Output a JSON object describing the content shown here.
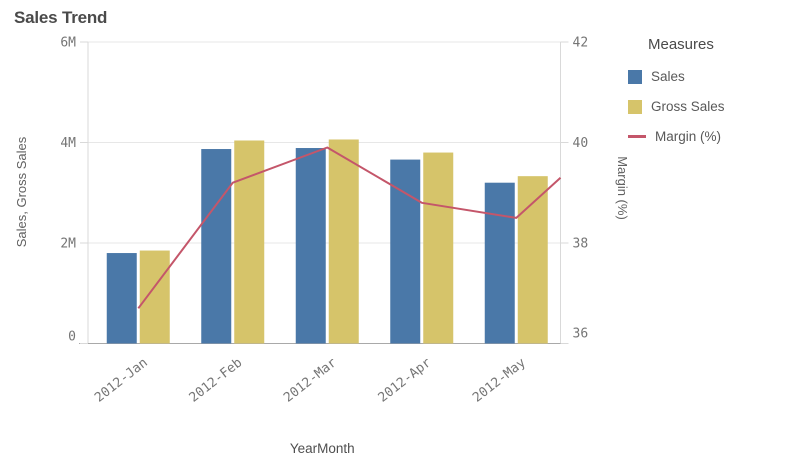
{
  "title": "Sales Trend",
  "legend": {
    "title": "Measures",
    "items": [
      {
        "label": "Sales",
        "swatch": "square",
        "color": "#4a78a8"
      },
      {
        "label": "Gross Sales",
        "swatch": "square",
        "color": "#d6c46a"
      },
      {
        "label": "Margin (%)",
        "swatch": "line",
        "color": "#c4566a"
      }
    ]
  },
  "chart_data": {
    "type": "combo",
    "title": "Sales Trend",
    "categories": [
      "2012-Jan",
      "2012-Feb",
      "2012-Mar",
      "2012-Apr",
      "2012-May"
    ],
    "series": [
      {
        "name": "Sales",
        "type": "bar",
        "axis": "left",
        "color": "#4a78a8",
        "unit": "M",
        "values": [
          1.8,
          3.87,
          3.89,
          3.66,
          3.2
        ]
      },
      {
        "name": "Gross Sales",
        "type": "bar",
        "axis": "left",
        "color": "#d6c46a",
        "unit": "M",
        "values": [
          1.85,
          4.04,
          4.06,
          3.8,
          3.33
        ]
      },
      {
        "name": "Margin (%)",
        "type": "line",
        "axis": "right",
        "color": "#c4566a",
        "unit": "%",
        "values": [
          36.7,
          39.2,
          39.9,
          38.8,
          38.5
        ],
        "partial_value_at_right_edge": 39.3
      }
    ],
    "x_axis": {
      "label": "YearMonth"
    },
    "y_axis_left": {
      "label": "Sales, Gross Sales",
      "tick_labels": [
        "0",
        "2M",
        "4M",
        "6M"
      ],
      "range": [
        0,
        6
      ],
      "grid": true
    },
    "y_axis_right": {
      "label": "Margin (%)",
      "tick_labels": [
        "36",
        "38",
        "40",
        "42"
      ],
      "range": [
        36,
        42
      ]
    }
  }
}
